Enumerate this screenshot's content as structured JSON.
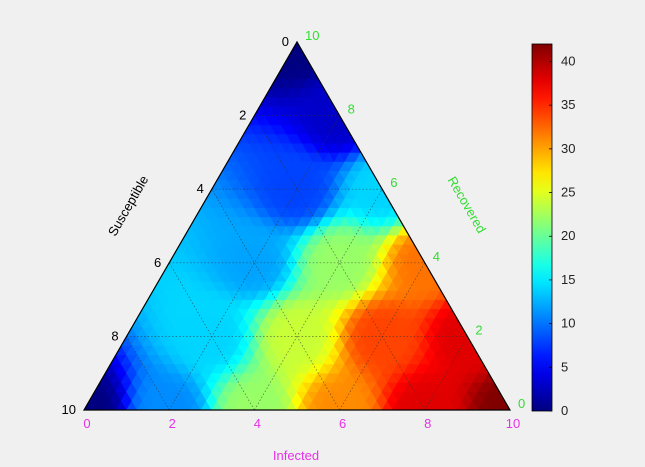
{
  "chart_data": {
    "type": "heatmap",
    "subtype": "ternary-filled-contour",
    "axes": {
      "susceptible": {
        "label": "Susceptible",
        "ticks": [
          "0",
          "2",
          "4",
          "6",
          "8",
          "10"
        ],
        "color": "#000000",
        "range": [
          0,
          10
        ]
      },
      "recovered": {
        "label": "Recovered",
        "ticks": [
          "0",
          "2",
          "4",
          "6",
          "8",
          "10"
        ],
        "color": "#33dd33",
        "range": [
          0,
          10
        ]
      },
      "infected": {
        "label": "Infected",
        "ticks": [
          "0",
          "2",
          "4",
          "6",
          "8",
          "10"
        ],
        "color": "#e633e6",
        "range": [
          0,
          10
        ]
      }
    },
    "colorbar": {
      "colormap": "jet",
      "range": [
        0,
        42
      ],
      "ticks": [
        "0",
        "5",
        "10",
        "15",
        "20",
        "25",
        "30",
        "35",
        "40"
      ]
    },
    "grid": true,
    "field_samples": [
      {
        "infected": 0,
        "recovered": 10,
        "value": 0
      },
      {
        "infected": 0,
        "recovered": 0,
        "value": 0
      },
      {
        "infected": 2,
        "recovered": 0,
        "value": 11
      },
      {
        "infected": 4,
        "recovered": 0,
        "value": 22
      },
      {
        "infected": 6,
        "recovered": 0,
        "value": 31
      },
      {
        "infected": 8,
        "recovered": 0,
        "value": 38
      },
      {
        "infected": 10,
        "recovered": 0,
        "value": 42
      },
      {
        "infected": 2,
        "recovered": 2,
        "value": 14
      },
      {
        "infected": 4,
        "recovered": 2,
        "value": 24
      },
      {
        "infected": 6,
        "recovered": 2,
        "value": 34
      },
      {
        "infected": 8,
        "recovered": 2,
        "value": 38
      },
      {
        "infected": 2,
        "recovered": 4,
        "value": 12
      },
      {
        "infected": 4,
        "recovered": 4,
        "value": 22
      },
      {
        "infected": 6,
        "recovered": 4,
        "value": 32
      },
      {
        "infected": 2,
        "recovered": 6,
        "value": 8
      },
      {
        "infected": 4,
        "recovered": 6,
        "value": 14
      },
      {
        "infected": 2,
        "recovered": 8,
        "value": 3
      }
    ]
  }
}
